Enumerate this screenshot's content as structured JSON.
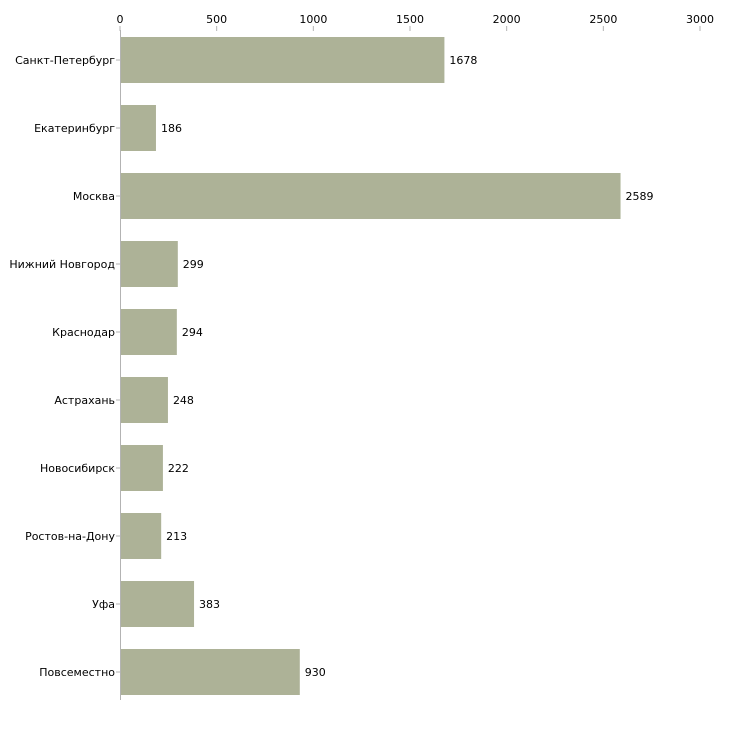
{
  "chart_data": {
    "type": "bar",
    "orientation": "horizontal",
    "title": "",
    "xlabel": "",
    "ylabel": "",
    "xlim": [
      0,
      3000
    ],
    "ticks": [
      0,
      500,
      1000,
      1500,
      2000,
      2500,
      3000
    ],
    "tick_labels": [
      "0",
      "500",
      "1000",
      "1500",
      "2000",
      "2500",
      "3000"
    ],
    "categories": [
      "Санкт-Петербург",
      "Екатеринбург",
      "Москва",
      "Нижний Новгород",
      "Краснодар",
      "Астрахань",
      "Новосибирск",
      "Ростов-на-Дону",
      "Уфа",
      "Повсеместно"
    ],
    "values": [
      1678,
      186,
      2589,
      299,
      294,
      248,
      222,
      213,
      383,
      930
    ],
    "value_labels": [
      "1678",
      "186",
      "2589",
      "299",
      "294",
      "248",
      "222",
      "213",
      "383",
      "930"
    ],
    "bar_color": "#adb297",
    "axis_color": "#b3b3b3",
    "grid": false,
    "legend": "none"
  }
}
